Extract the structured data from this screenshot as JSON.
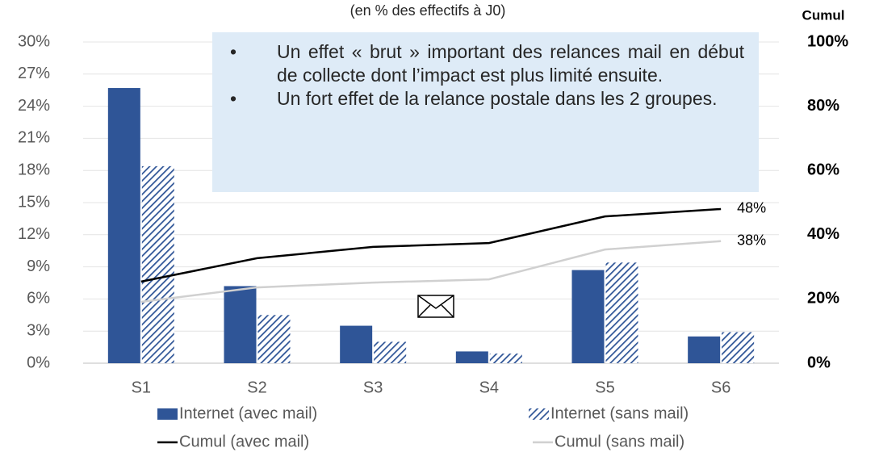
{
  "chart_data": {
    "type": "bar",
    "title": "(en % des effectifs à J0)",
    "y2_label": "Cumul",
    "notes": [
      "Un effet « brut » important des relances mail en début de collecte dont l’impact est plus limité ensuite.",
      "Un fort effet de la relance postale dans les 2 groupes."
    ],
    "categories": [
      "S1",
      "S2",
      "S3",
      "S4",
      "S5",
      "S6"
    ],
    "series": [
      {
        "name": "Internet (avec mail)",
        "type": "bar",
        "color": "#2f5597",
        "values": [
          25.7,
          7.2,
          3.5,
          1.1,
          8.7,
          2.5
        ]
      },
      {
        "name": "Internet (sans mail)",
        "type": "bar",
        "pattern": "hatch",
        "color": "#2f5597",
        "values": [
          18.4,
          4.5,
          2.0,
          0.9,
          9.4,
          2.9
        ]
      },
      {
        "name": "Cumul (avec mail)",
        "type": "line",
        "axis": "y2",
        "color": "#000000",
        "values": [
          25.4,
          32.7,
          36.2,
          37.4,
          45.7,
          48
        ],
        "value_labels": [
          null,
          null,
          null,
          null,
          null,
          "48%"
        ]
      },
      {
        "name": "Cumul (sans mail)",
        "type": "line",
        "axis": "y2",
        "color": "#d0d0d0",
        "values": [
          19.1,
          23.6,
          25.1,
          26.1,
          35.4,
          38
        ],
        "value_labels": [
          null,
          null,
          null,
          null,
          null,
          "38%"
        ]
      }
    ],
    "ylim": [
      0,
      30
    ],
    "yticks": [
      {
        "value": 0,
        "label": "0%"
      },
      {
        "value": 3,
        "label": "3%"
      },
      {
        "value": 6,
        "label": "6%"
      },
      {
        "value": 9,
        "label": "9%"
      },
      {
        "value": 12,
        "label": "12%"
      },
      {
        "value": 15,
        "label": "15%"
      },
      {
        "value": 18,
        "label": "18%"
      },
      {
        "value": 21,
        "label": "21%"
      },
      {
        "value": 24,
        "label": "24%"
      },
      {
        "value": 27,
        "label": "27%"
      },
      {
        "value": 30,
        "label": "30%"
      }
    ],
    "y2lim": [
      0,
      100
    ],
    "y2ticks": [
      {
        "value": 0,
        "label": "0%"
      },
      {
        "value": 20,
        "label": "20%"
      },
      {
        "value": 40,
        "label": "40%"
      },
      {
        "value": 60,
        "label": "60%"
      },
      {
        "value": 80,
        "label": "80%"
      },
      {
        "value": 100,
        "label": "100%"
      }
    ],
    "grid": true
  }
}
